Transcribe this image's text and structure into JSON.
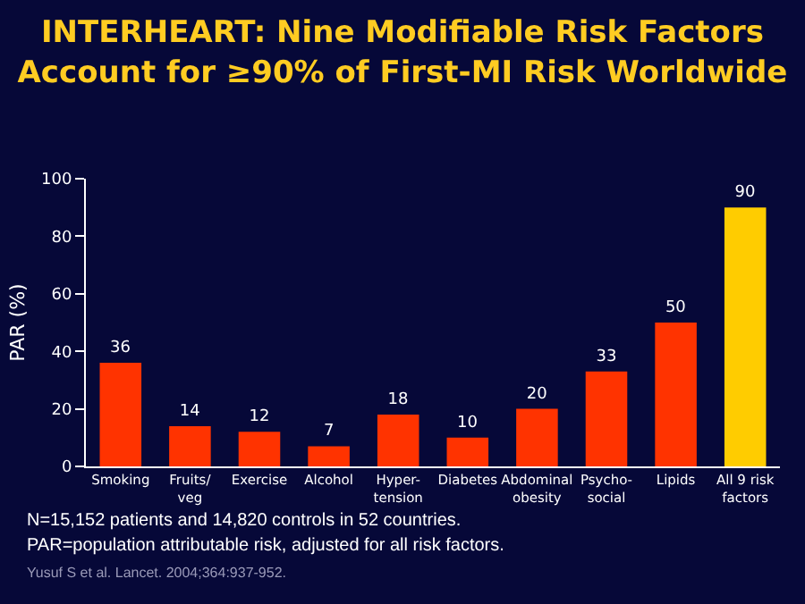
{
  "chart_data": {
    "type": "bar",
    "title": "INTERHEART: Nine Modifiable Risk Factors\nAccount for ≥90% of First-MI Risk Worldwide",
    "ylabel": "PAR (%)",
    "categories": [
      "Smoking",
      "Fruits/\nveg",
      "Exercise",
      "Alcohol",
      "Hyper-\ntension",
      "Diabetes",
      "Abdominal\nobesity",
      "Psycho-\nsocial",
      "Lipids",
      "All 9 risk\nfactors"
    ],
    "values": [
      36,
      14,
      12,
      7,
      18,
      10,
      20,
      33,
      50,
      90
    ],
    "colors": [
      "#ff3300",
      "#ff3300",
      "#ff3300",
      "#ff3300",
      "#ff3300",
      "#ff3300",
      "#ff3300",
      "#ff3300",
      "#ff3300",
      "#ffcc00"
    ],
    "ylim": [
      0,
      100
    ],
    "yticks": [
      0,
      20,
      40,
      60,
      80,
      100
    ],
    "grid": false,
    "data_labels": true,
    "annotations": [
      "N=15,152 patients and 14,820 controls in 52 countries.",
      "PAR=population attributable risk, adjusted for all risk factors.",
      "Yusuf S et al. Lancet. 2004;364:937-952."
    ]
  }
}
